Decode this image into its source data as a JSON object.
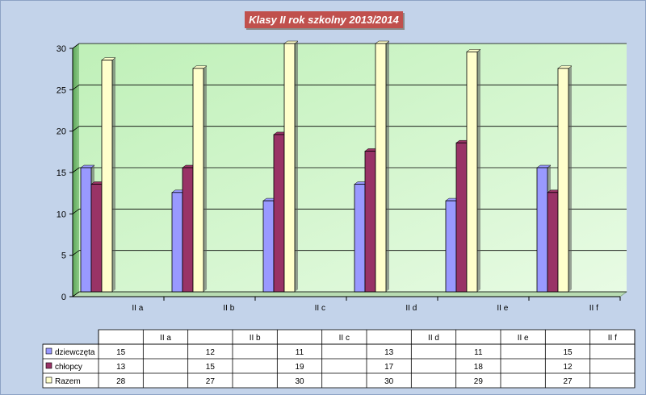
{
  "chart_data": {
    "type": "bar",
    "title": "Klasy II rok szkolny 2013/2014",
    "categories": [
      "II a",
      "II b",
      "II c",
      "II d",
      "II e",
      "II f"
    ],
    "series": [
      {
        "name": "dziewczęta",
        "values": [
          15,
          12,
          11,
          13,
          11,
          15
        ],
        "color": "#9999ff"
      },
      {
        "name": "chłopcy",
        "values": [
          13,
          15,
          19,
          17,
          18,
          12
        ],
        "color": "#993366"
      },
      {
        "name": "Razem",
        "values": [
          28,
          27,
          30,
          30,
          29,
          27
        ],
        "color": "#ffffcc"
      }
    ],
    "y_ticks": [
      0,
      5,
      10,
      15,
      20,
      25,
      30
    ],
    "ylim": [
      0,
      30
    ],
    "grid": true,
    "legend": "data table below chart"
  }
}
